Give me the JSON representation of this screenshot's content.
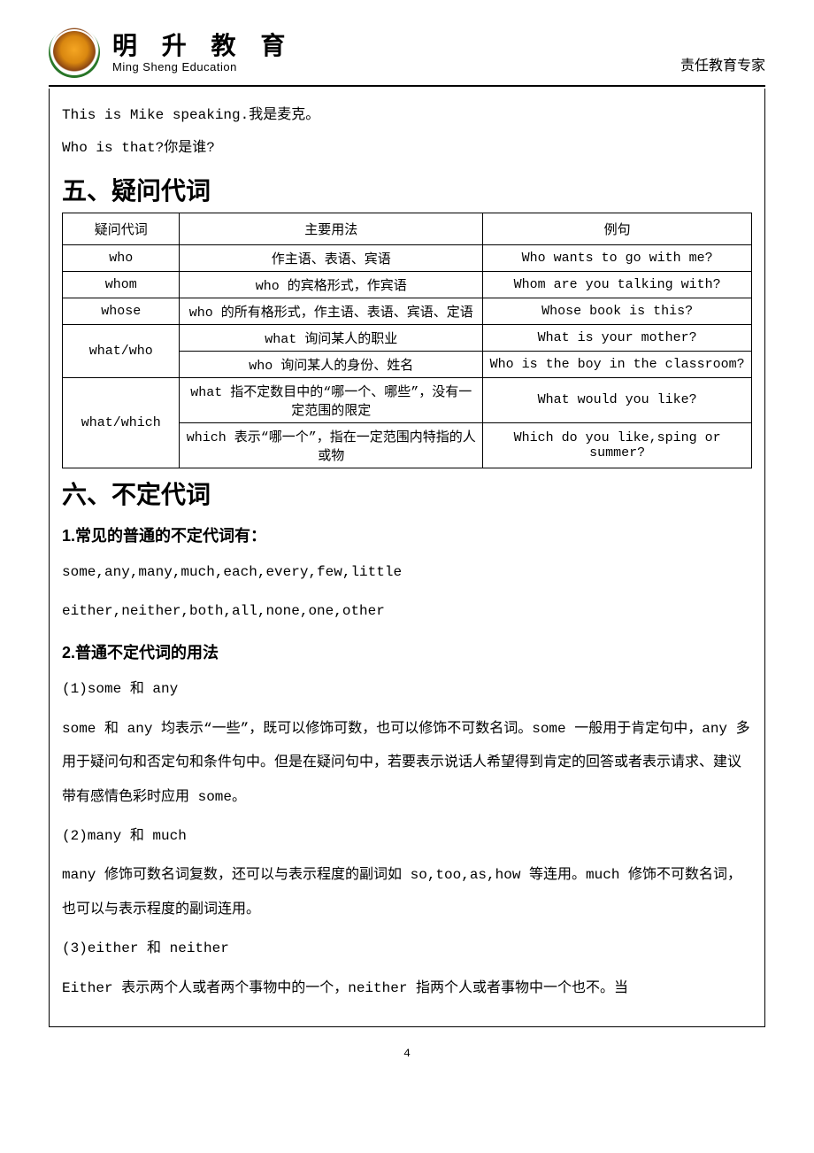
{
  "header": {
    "brand_cn": "明 升 教 育",
    "brand_en": "Ming Sheng Education",
    "tagline": "责任教育专家"
  },
  "intro": {
    "line1": "This is Mike speaking.我是麦克。",
    "line2": "Who is that?你是谁?"
  },
  "section5": {
    "title": "五、疑问代词",
    "table": {
      "headers": [
        "疑问代词",
        "主要用法",
        "例句"
      ],
      "rows": [
        {
          "pron": "who",
          "rowspan": 1,
          "usage": "作主语、表语、宾语",
          "example": "Who wants to go with me?"
        },
        {
          "pron": "whom",
          "rowspan": 1,
          "usage": "who 的宾格形式，作宾语",
          "example": "Whom are you talking with?"
        },
        {
          "pron": "whose",
          "rowspan": 1,
          "usage": "who 的所有格形式，作主语、表语、宾语、定语",
          "example": "Whose book is this?"
        },
        {
          "pron": "what/who",
          "rowspan": 2,
          "usage": "what 询问某人的职业",
          "example": "What is your mother?"
        },
        {
          "pron": "",
          "rowspan": 0,
          "usage": "who 询问某人的身份、姓名",
          "example": "Who is the boy in the classroom?"
        },
        {
          "pron": "what/which",
          "rowspan": 2,
          "usage": "what 指不定数目中的“哪一个、哪些”，没有一定范围的限定",
          "example": "What would you like?"
        },
        {
          "pron": "",
          "rowspan": 0,
          "usage": "which 表示“哪一个”，指在一定范围内特指的人或物",
          "example": "Which do you like,sping or summer?"
        }
      ]
    }
  },
  "section6": {
    "title": "六、不定代词",
    "sub1": "1.常见的普通的不定代词有：",
    "list1": "some,any,many,much,each,every,few,little",
    "list2": "either,neither,both,all,none,one,other",
    "sub2": "2.普通不定代词的用法",
    "p1_title": "(1)some 和 any",
    "p1_body": "some 和 any 均表示“一些”，既可以修饰可数，也可以修饰不可数名词。some 一般用于肯定句中，any 多用于疑问句和否定句和条件句中。但是在疑问句中，若要表示说话人希望得到肯定的回答或者表示请求、建议带有感情色彩时应用 some。",
    "p2_title": "(2)many 和 much",
    "p2_body": "many 修饰可数名词复数，还可以与表示程度的副词如 so,too,as,how 等连用。much 修饰不可数名词，也可以与表示程度的副词连用。",
    "p3_title": "(3)either 和 neither",
    "p3_body": "Either 表示两个人或者两个事物中的一个，neither 指两个人或者事物中一个也不。当"
  },
  "page_number": "4"
}
